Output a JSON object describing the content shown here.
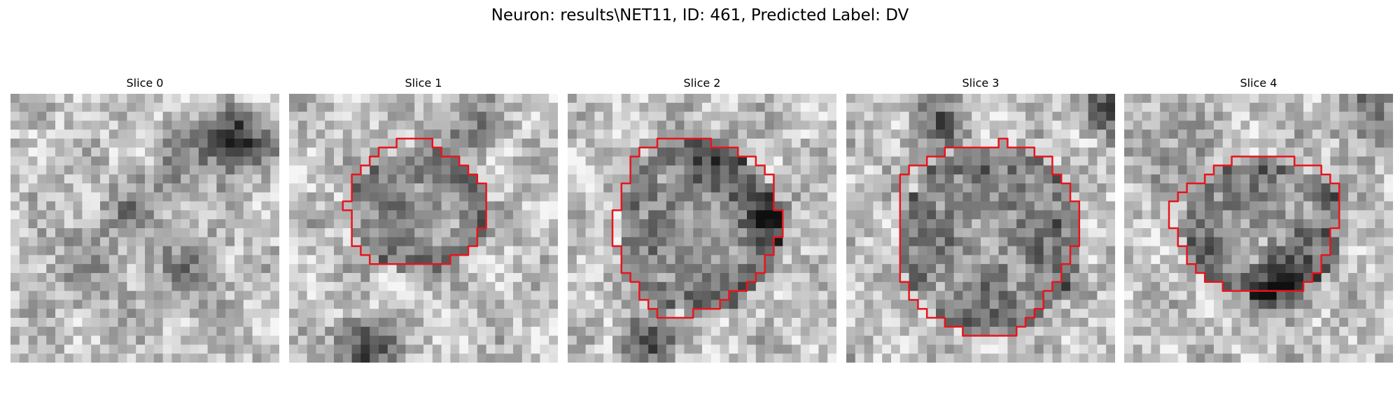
{
  "figure": {
    "title": "Neuron: results\\NET11, ID: 461, Predicted Label: DV"
  },
  "slices": [
    {
      "title": "Slice 0",
      "has_contour": false
    },
    {
      "title": "Slice 1",
      "has_contour": true
    },
    {
      "title": "Slice 2",
      "has_contour": true
    },
    {
      "title": "Slice 3",
      "has_contour": true
    },
    {
      "title": "Slice 4",
      "has_contour": true
    }
  ],
  "colors": {
    "contour": "#e8141c",
    "background": "#ffffff"
  }
}
